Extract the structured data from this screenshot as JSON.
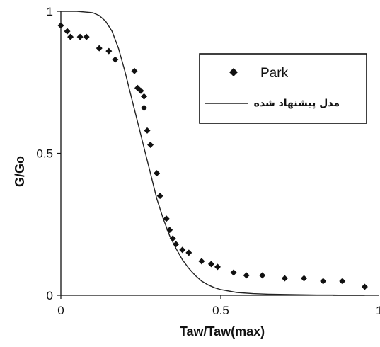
{
  "chart_data": {
    "type": "scatter",
    "xlabel": "Taw/Taw(max)",
    "ylabel": "G/Go",
    "xlim": [
      0,
      1
    ],
    "ylim": [
      0,
      1
    ],
    "x_ticks": [
      "0",
      "0.5",
      "1"
    ],
    "y_ticks": [
      "0",
      "0.5",
      "1"
    ],
    "grid": false,
    "legend_position": "upper-right",
    "series": [
      {
        "name": "Park",
        "marker": "diamond",
        "x": [
          0.0,
          0.02,
          0.03,
          0.06,
          0.08,
          0.12,
          0.15,
          0.17,
          0.23,
          0.24,
          0.25,
          0.26,
          0.26,
          0.27,
          0.28,
          0.3,
          0.31,
          0.33,
          0.34,
          0.35,
          0.36,
          0.38,
          0.4,
          0.44,
          0.47,
          0.49,
          0.54,
          0.58,
          0.63,
          0.7,
          0.76,
          0.82,
          0.88,
          0.95
        ],
        "y": [
          0.95,
          0.93,
          0.91,
          0.91,
          0.91,
          0.87,
          0.86,
          0.83,
          0.79,
          0.73,
          0.72,
          0.7,
          0.66,
          0.58,
          0.53,
          0.43,
          0.35,
          0.27,
          0.23,
          0.2,
          0.18,
          0.16,
          0.15,
          0.12,
          0.11,
          0.1,
          0.08,
          0.07,
          0.07,
          0.06,
          0.06,
          0.05,
          0.05,
          0.03
        ]
      },
      {
        "name": "مدل پیشنهاد شده",
        "marker": "line",
        "x": [
          0.0,
          0.05,
          0.1,
          0.12,
          0.14,
          0.16,
          0.18,
          0.2,
          0.22,
          0.24,
          0.26,
          0.28,
          0.3,
          0.32,
          0.34,
          0.36,
          0.38,
          0.4,
          0.42,
          0.44,
          0.46,
          0.48,
          0.5,
          0.55,
          0.6,
          0.65,
          0.7,
          0.75,
          0.8,
          0.85,
          0.9,
          0.95
        ],
        "y": [
          1.0,
          1.0,
          0.995,
          0.985,
          0.965,
          0.93,
          0.87,
          0.79,
          0.7,
          0.61,
          0.52,
          0.43,
          0.34,
          0.27,
          0.21,
          0.165,
          0.125,
          0.095,
          0.07,
          0.05,
          0.037,
          0.027,
          0.02,
          0.01,
          0.006,
          0.004,
          0.003,
          0.002,
          0.001,
          0.001,
          0.0,
          0.0
        ]
      }
    ],
    "colors": {
      "axis": "#111111",
      "marker": "#111111",
      "line": "#222222",
      "background": "#ffffff"
    }
  }
}
